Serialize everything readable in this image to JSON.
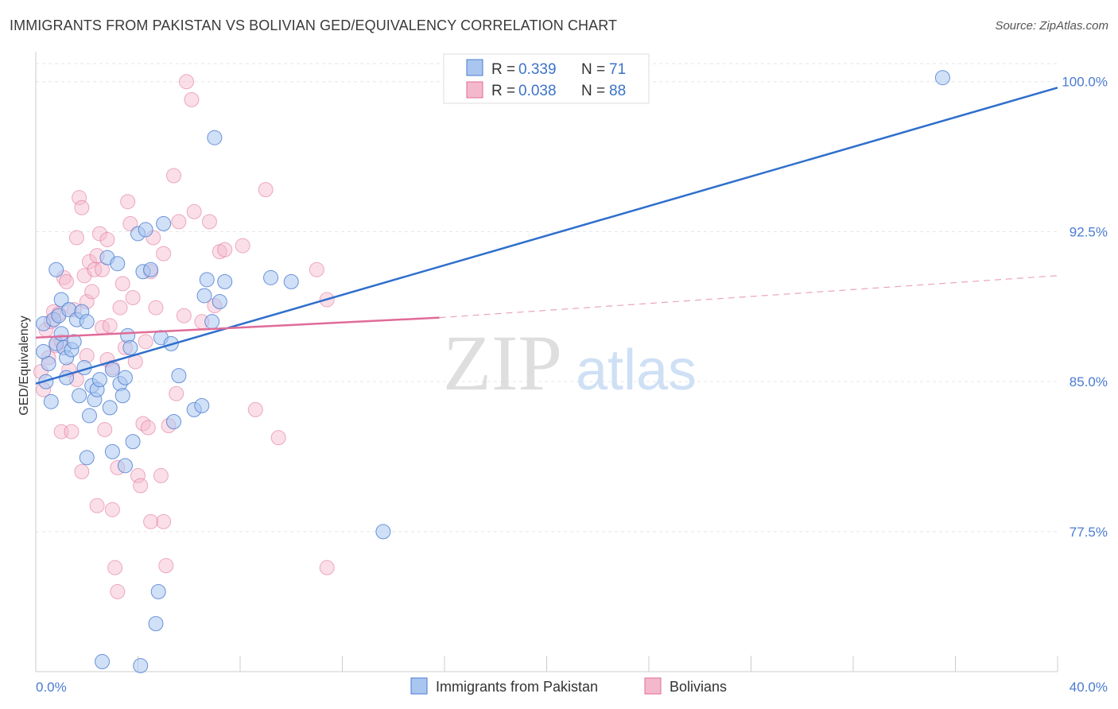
{
  "header": {
    "title": "IMMIGRANTS FROM PAKISTAN VS BOLIVIAN GED/EQUIVALENCY CORRELATION CHART",
    "source": "Source: ZipAtlas.com"
  },
  "watermark": {
    "zip": "ZIP",
    "atlas": "atlas"
  },
  "legend": {
    "r_label": "R =",
    "n_label": "N =",
    "pakistan": {
      "r": "0.339",
      "n": "71"
    },
    "bolivians": {
      "r": "0.038",
      "n": "88"
    }
  },
  "chart_data": {
    "type": "scatter",
    "title": "IMMIGRANTS FROM PAKISTAN VS BOLIVIAN GED/EQUIVALENCY CORRELATION CHART",
    "xlabel": "",
    "ylabel": "GED/Equivalency",
    "xlim": [
      0,
      40
    ],
    "ylim": [
      70.5,
      101.5
    ],
    "x_tick_labels": [
      "0.0%",
      "40.0%"
    ],
    "y_ticks": [
      77.5,
      85.0,
      92.5,
      100.0
    ],
    "y_tick_labels": [
      "77.5%",
      "85.0%",
      "92.5%",
      "100.0%"
    ],
    "grid": true,
    "legend_position": "top-center",
    "colors": {
      "pakistan": "#4a7bd0",
      "pakistan_fill": "#a9c6f0",
      "bolivians": "#e06b98",
      "bolivians_fill": "#f4b8cd"
    },
    "series": [
      {
        "name": "Immigrants from Pakistan",
        "trend": {
          "x0": 0,
          "y0": 84.9,
          "x1": 40,
          "y1": 99.7
        },
        "points": [
          [
            0.3,
            87.9
          ],
          [
            0.3,
            86.5
          ],
          [
            0.4,
            85.0
          ],
          [
            0.5,
            85.9
          ],
          [
            0.6,
            84.0
          ],
          [
            0.7,
            88.1
          ],
          [
            0.8,
            86.9
          ],
          [
            0.8,
            90.6
          ],
          [
            0.9,
            88.3
          ],
          [
            1.0,
            87.4
          ],
          [
            1.0,
            89.1
          ],
          [
            1.1,
            86.7
          ],
          [
            1.2,
            85.2
          ],
          [
            1.2,
            86.2
          ],
          [
            1.3,
            88.6
          ],
          [
            1.4,
            86.6
          ],
          [
            1.5,
            87.0
          ],
          [
            1.6,
            88.1
          ],
          [
            1.7,
            84.3
          ],
          [
            1.8,
            88.5
          ],
          [
            1.9,
            85.7
          ],
          [
            2.0,
            88.0
          ],
          [
            2.0,
            81.2
          ],
          [
            2.1,
            83.3
          ],
          [
            2.2,
            84.8
          ],
          [
            2.3,
            84.1
          ],
          [
            2.4,
            84.6
          ],
          [
            2.5,
            85.1
          ],
          [
            2.6,
            71.0
          ],
          [
            2.8,
            91.2
          ],
          [
            2.9,
            83.7
          ],
          [
            3.0,
            81.5
          ],
          [
            3.0,
            85.6
          ],
          [
            3.2,
            90.9
          ],
          [
            3.3,
            84.9
          ],
          [
            3.4,
            84.3
          ],
          [
            3.5,
            85.2
          ],
          [
            3.5,
            80.8
          ],
          [
            3.6,
            87.3
          ],
          [
            3.7,
            86.7
          ],
          [
            3.8,
            82.0
          ],
          [
            4.0,
            92.4
          ],
          [
            4.1,
            70.8
          ],
          [
            4.2,
            90.5
          ],
          [
            4.3,
            92.6
          ],
          [
            4.5,
            90.6
          ],
          [
            4.7,
            72.9
          ],
          [
            4.8,
            74.5
          ],
          [
            4.9,
            87.2
          ],
          [
            5.0,
            92.9
          ],
          [
            5.3,
            86.9
          ],
          [
            5.4,
            83.0
          ],
          [
            5.6,
            85.3
          ],
          [
            6.2,
            83.6
          ],
          [
            6.5,
            83.8
          ],
          [
            6.6,
            89.3
          ],
          [
            6.7,
            90.1
          ],
          [
            6.9,
            88.0
          ],
          [
            7.0,
            97.2
          ],
          [
            7.2,
            89.0
          ],
          [
            7.4,
            90.0
          ],
          [
            9.2,
            90.2
          ],
          [
            10.0,
            90.0
          ],
          [
            13.6,
            77.5
          ],
          [
            16.8,
            100.2
          ],
          [
            35.5,
            100.2
          ]
        ]
      },
      {
        "name": "Bolivians",
        "trend": {
          "x0": 0,
          "y0": 87.2,
          "x1": 15.8,
          "y1": 88.2
        },
        "trend_dashed": {
          "x0": 15.8,
          "y0": 88.2,
          "x1": 40,
          "y1": 90.3
        },
        "points": [
          [
            0.2,
            85.5
          ],
          [
            0.3,
            84.6
          ],
          [
            0.4,
            87.6
          ],
          [
            0.5,
            86.2
          ],
          [
            0.6,
            88.0
          ],
          [
            0.7,
            88.5
          ],
          [
            0.8,
            86.8
          ],
          [
            0.9,
            88.4
          ],
          [
            1.0,
            87.0
          ],
          [
            1.0,
            82.5
          ],
          [
            1.1,
            90.2
          ],
          [
            1.2,
            90.0
          ],
          [
            1.3,
            85.6
          ],
          [
            1.4,
            82.5
          ],
          [
            1.5,
            88.6
          ],
          [
            1.6,
            85.1
          ],
          [
            1.6,
            92.2
          ],
          [
            1.7,
            94.2
          ],
          [
            1.8,
            93.7
          ],
          [
            1.9,
            90.3
          ],
          [
            2.0,
            89.0
          ],
          [
            2.0,
            86.3
          ],
          [
            2.1,
            91.0
          ],
          [
            2.2,
            89.5
          ],
          [
            2.3,
            90.6
          ],
          [
            2.4,
            91.3
          ],
          [
            2.5,
            92.4
          ],
          [
            2.6,
            90.6
          ],
          [
            2.6,
            87.7
          ],
          [
            2.8,
            92.1
          ],
          [
            2.8,
            86.1
          ],
          [
            2.9,
            87.8
          ],
          [
            3.0,
            85.7
          ],
          [
            3.0,
            78.6
          ],
          [
            3.1,
            75.7
          ],
          [
            3.2,
            80.7
          ],
          [
            3.3,
            88.7
          ],
          [
            3.4,
            89.9
          ],
          [
            3.5,
            86.7
          ],
          [
            3.6,
            94.0
          ],
          [
            3.7,
            92.9
          ],
          [
            3.8,
            89.2
          ],
          [
            3.9,
            86.0
          ],
          [
            4.0,
            80.3
          ],
          [
            4.1,
            79.8
          ],
          [
            4.2,
            82.9
          ],
          [
            4.3,
            87.0
          ],
          [
            4.4,
            82.7
          ],
          [
            4.5,
            90.5
          ],
          [
            4.6,
            92.2
          ],
          [
            4.7,
            88.7
          ],
          [
            4.9,
            80.3
          ],
          [
            5.0,
            91.4
          ],
          [
            5.0,
            78.0
          ],
          [
            5.1,
            75.8
          ],
          [
            5.2,
            82.8
          ],
          [
            5.4,
            95.3
          ],
          [
            5.5,
            84.4
          ],
          [
            5.6,
            93.0
          ],
          [
            5.8,
            88.3
          ],
          [
            5.9,
            100.0
          ],
          [
            6.1,
            99.1
          ],
          [
            6.2,
            93.5
          ],
          [
            6.5,
            88.0
          ],
          [
            6.8,
            93.0
          ],
          [
            7.0,
            88.8
          ],
          [
            7.2,
            91.5
          ],
          [
            7.4,
            91.6
          ],
          [
            8.1,
            91.8
          ],
          [
            8.6,
            83.6
          ],
          [
            9.0,
            94.6
          ],
          [
            9.5,
            82.2
          ],
          [
            11.0,
            90.6
          ],
          [
            11.4,
            89.1
          ],
          [
            11.4,
            75.7
          ],
          [
            2.7,
            82.6
          ],
          [
            3.2,
            74.5
          ],
          [
            2.4,
            78.8
          ],
          [
            4.5,
            78.0
          ],
          [
            1.8,
            80.5
          ]
        ]
      }
    ]
  },
  "bottom_legend": {
    "pakistan": "Immigrants from Pakistan",
    "bolivians": "Bolivians"
  }
}
